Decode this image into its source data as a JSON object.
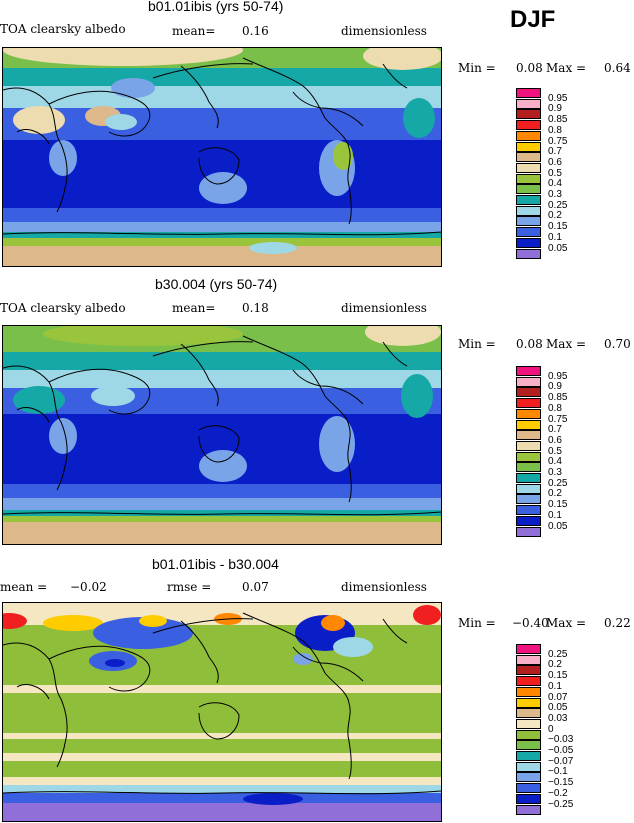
{
  "season": "DJF",
  "panels": [
    {
      "title": "b01.01ibis (yrs 50-74)",
      "left_text": "TOA clearsky albedo",
      "mean_label": "mean=",
      "mean_value": "0.16",
      "units": "dimensionless",
      "min_label": "Min =",
      "min_value": "0.08",
      "max_label": "Max =",
      "max_value": "0.64"
    },
    {
      "title": "b30.004 (yrs 50-74)",
      "left_text": "TOA clearsky albedo",
      "mean_label": "mean=",
      "mean_value": "0.18",
      "units": "dimensionless",
      "min_label": "Min =",
      "min_value": "0.08",
      "max_label": "Max =",
      "max_value": "0.70"
    },
    {
      "title": "b01.01ibis - b30.004",
      "mean_label": "mean =",
      "mean_value": "−0.02",
      "rmse_label": "rmse =",
      "rmse_value": "0.07",
      "units": "dimensionless",
      "min_label": "Min =",
      "min_value": "−0.40",
      "max_label": "Max =",
      "max_value": "0.22"
    }
  ],
  "legend_abs": {
    "labels": [
      "0.95",
      "0.9",
      "0.85",
      "0.8",
      "0.75",
      "0.7",
      "0.6",
      "0.5",
      "0.4",
      "0.3",
      "0.25",
      "0.2",
      "0.15",
      "0.1",
      "0.05"
    ],
    "colors": [
      "#f0147f",
      "#f7b0c8",
      "#b11f1f",
      "#f02020",
      "#ff8800",
      "#ffcc00",
      "#dcb88a",
      "#ecdcb0",
      "#9ac43c",
      "#7abf4a",
      "#16a7a7",
      "#9ed8e6",
      "#7aa4e8",
      "#3a5fe0",
      "#0a1ec8",
      "#9070d8"
    ]
  },
  "legend_diff": {
    "labels": [
      "0.25",
      "0.2",
      "0.15",
      "0.1",
      "0.07",
      "0.05",
      "0.03",
      "0",
      "−0.03",
      "−0.05",
      "−0.07",
      "−0.1",
      "−0.15",
      "−0.2",
      "−0.25"
    ],
    "colors": [
      "#f0147f",
      "#f7b0c8",
      "#b11f1f",
      "#f02020",
      "#ff8800",
      "#ffcc00",
      "#dcb88a",
      "#f5e7c2",
      "#8fbe3a",
      "#7abf4a",
      "#16a7a7",
      "#9ed8e6",
      "#7aa4e8",
      "#3a5fe0",
      "#0a1ec8",
      "#9070d8"
    ]
  }
}
